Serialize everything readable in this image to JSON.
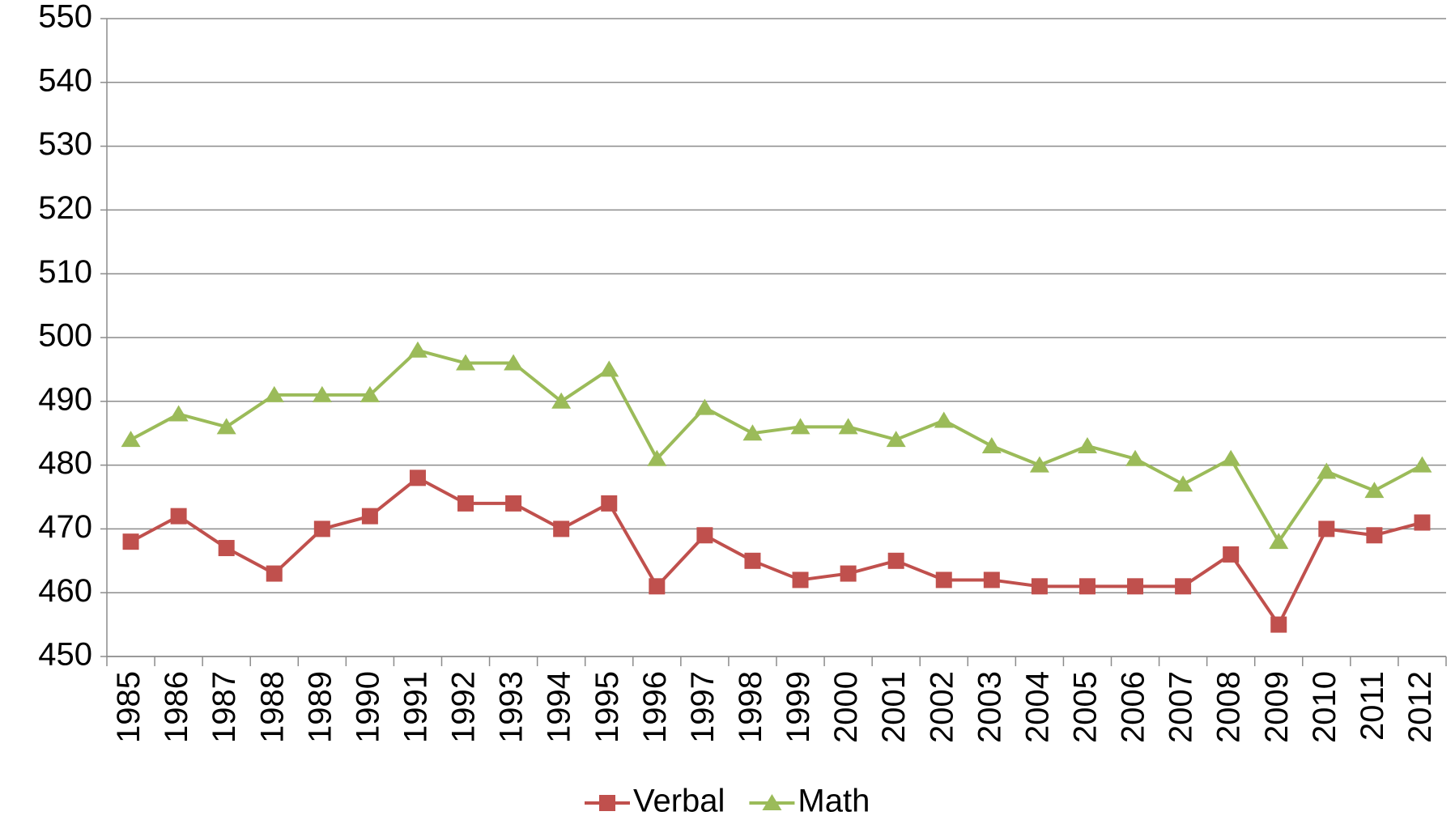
{
  "chart_data": {
    "type": "line",
    "categories": [
      "1985",
      "1986",
      "1987",
      "1988",
      "1989",
      "1990",
      "1991",
      "1992",
      "1993",
      "1994",
      "1995",
      "1996",
      "1997",
      "1998",
      "1999",
      "2000",
      "2001",
      "2002",
      "2003",
      "2004",
      "2005",
      "2006",
      "2007",
      "2008",
      "2009",
      "2010",
      "2011",
      "2012"
    ],
    "series": [
      {
        "name": "Verbal",
        "color": "#c0504d",
        "marker": "square",
        "values": [
          468,
          472,
          467,
          463,
          470,
          472,
          478,
          474,
          474,
          470,
          474,
          461,
          469,
          465,
          462,
          463,
          465,
          462,
          462,
          461,
          461,
          461,
          461,
          466,
          455,
          470,
          469,
          471
        ]
      },
      {
        "name": "Math",
        "color": "#9bbb59",
        "marker": "triangle",
        "values": [
          484,
          488,
          486,
          491,
          491,
          491,
          498,
          496,
          496,
          490,
          495,
          481,
          489,
          485,
          486,
          486,
          484,
          487,
          483,
          480,
          483,
          481,
          477,
          481,
          468,
          479,
          476,
          480
        ]
      }
    ],
    "ylim": [
      450,
      550
    ],
    "yticks": [
      450,
      460,
      470,
      480,
      490,
      500,
      510,
      520,
      530,
      540,
      550
    ],
    "grid": true,
    "legend": "bottom"
  }
}
